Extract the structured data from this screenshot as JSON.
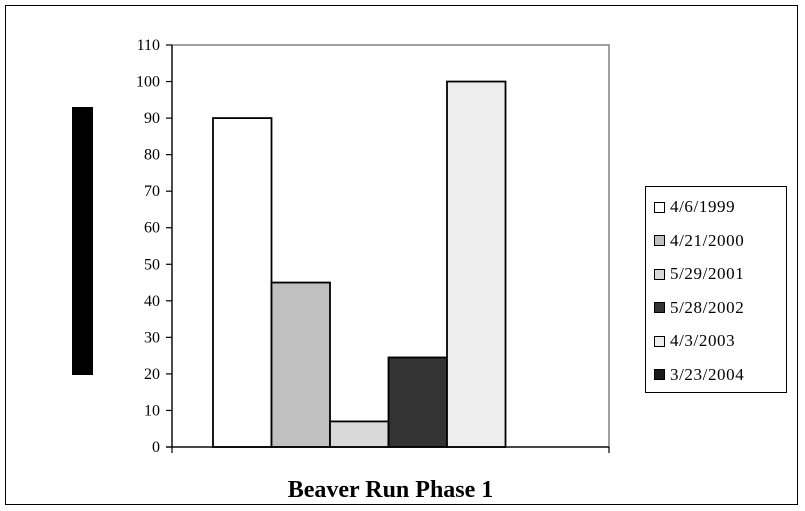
{
  "chart_data": {
    "type": "bar",
    "categories": [
      "Beaver Run Phase 1"
    ],
    "series": [
      {
        "name": "4/6/1999",
        "values": [
          90
        ],
        "color": "#ffffff"
      },
      {
        "name": "4/21/2000",
        "values": [
          45
        ],
        "color": "#c0c0c0"
      },
      {
        "name": "5/29/2001",
        "values": [
          7
        ],
        "color": "#d9d9d9"
      },
      {
        "name": "5/28/2002",
        "values": [
          24.5
        ],
        "color": "#333333"
      },
      {
        "name": "4/3/2003",
        "values": [
          100
        ],
        "color": "#eeeeee"
      },
      {
        "name": "3/23/2004",
        "values": [
          null
        ],
        "color": "#1a1a1a"
      }
    ],
    "yticks": [
      "0",
      "10",
      "20",
      "30",
      "40",
      "50",
      "60",
      "70",
      "80",
      "90",
      "100",
      "110"
    ],
    "ylim": [
      0,
      110
    ],
    "grid": false,
    "legend_position": "right"
  }
}
